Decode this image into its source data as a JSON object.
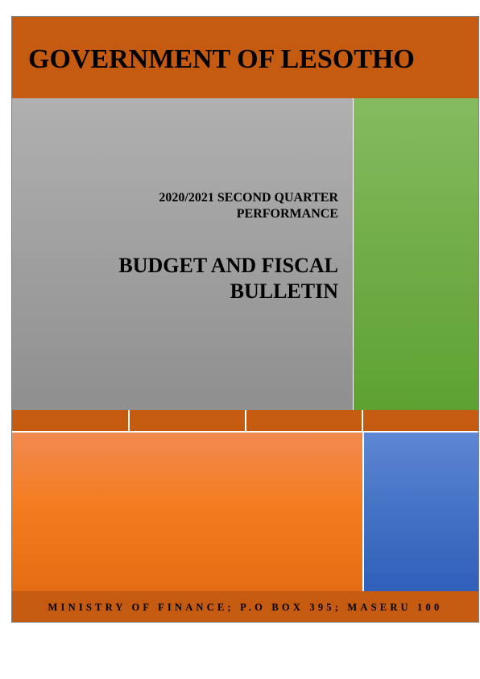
{
  "header": {
    "title": "GOVERNMENT OF LESOTHO"
  },
  "report": {
    "subtitle_line1": "2020/2021 SECOND QUARTER",
    "subtitle_line2": "PERFORMANCE",
    "title_line1": "BUDGET AND FISCAL",
    "title_line2": "BULLETIN"
  },
  "footer": {
    "text": "MINISTRY OF FINANCE; P.O BOX 395; MASERU 100"
  },
  "colors": {
    "band": "#c55a11",
    "gray": "#a6a6a6",
    "green": "#70ad47",
    "orange": "#f47c20",
    "blue": "#4472c4"
  }
}
